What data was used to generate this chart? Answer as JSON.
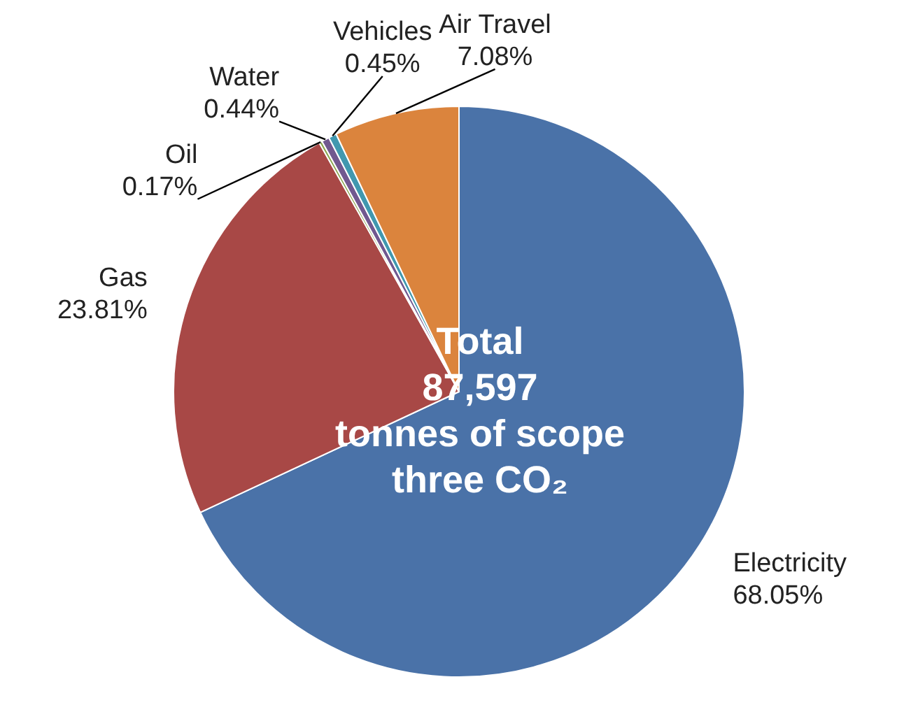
{
  "chart_data": {
    "type": "pie",
    "categories": [
      "Electricity",
      "Gas",
      "Oil",
      "Water",
      "Vehicles",
      "Air Travel"
    ],
    "values": [
      68.05,
      23.81,
      0.17,
      0.44,
      0.45,
      7.08
    ],
    "colors": [
      "#4a72a8",
      "#a84846",
      "#8aa54f",
      "#71588f",
      "#4198af",
      "#db843d"
    ],
    "annotations": [
      "Total\n87,597\ntonnes of scope\nthree CO₂"
    ],
    "value_labels": [
      "68.05%",
      "23.81%",
      "0.17%",
      "0.44%",
      "0.45%",
      "7.08%"
    ]
  }
}
